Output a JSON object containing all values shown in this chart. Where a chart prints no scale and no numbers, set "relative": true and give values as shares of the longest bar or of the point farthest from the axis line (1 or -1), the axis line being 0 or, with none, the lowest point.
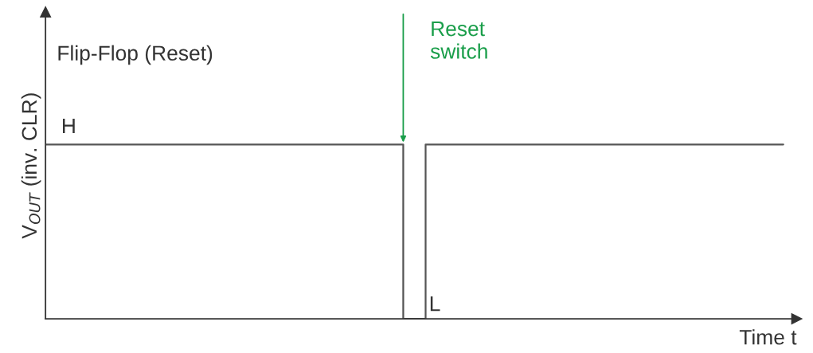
{
  "chart_data": {
    "type": "step",
    "relative": true,
    "title": "Flip-Flop (Reset)",
    "ylabel": "V$_{OUT}$ (inv. CLR)",
    "xlabel": "Time t",
    "categories": [
      null,
      null,
      null,
      null,
      null,
      null,
      null,
      null,
      null,
      null,
      null,
      null,
      null,
      null,
      null,
      null,
      null,
      null,
      null,
      null,
      null,
      null,
      null,
      null,
      null,
      null,
      null,
      null,
      null,
      null,
      null,
      null,
      null,
      null
    ],
    "series": [
      {
        "color": "#555555",
        "values": [
          1,
          1,
          1,
          1,
          1,
          1,
          1,
          1,
          1,
          1,
          1,
          1,
          1,
          1,
          1,
          1,
          0,
          1,
          1,
          1,
          1,
          1,
          1,
          1,
          1,
          1,
          1,
          1,
          1,
          1,
          1,
          1,
          1,
          1
        ]
      }
    ],
    "annotations": [
      "H",
      "L",
      "Reset switch"
    ]
  }
}
